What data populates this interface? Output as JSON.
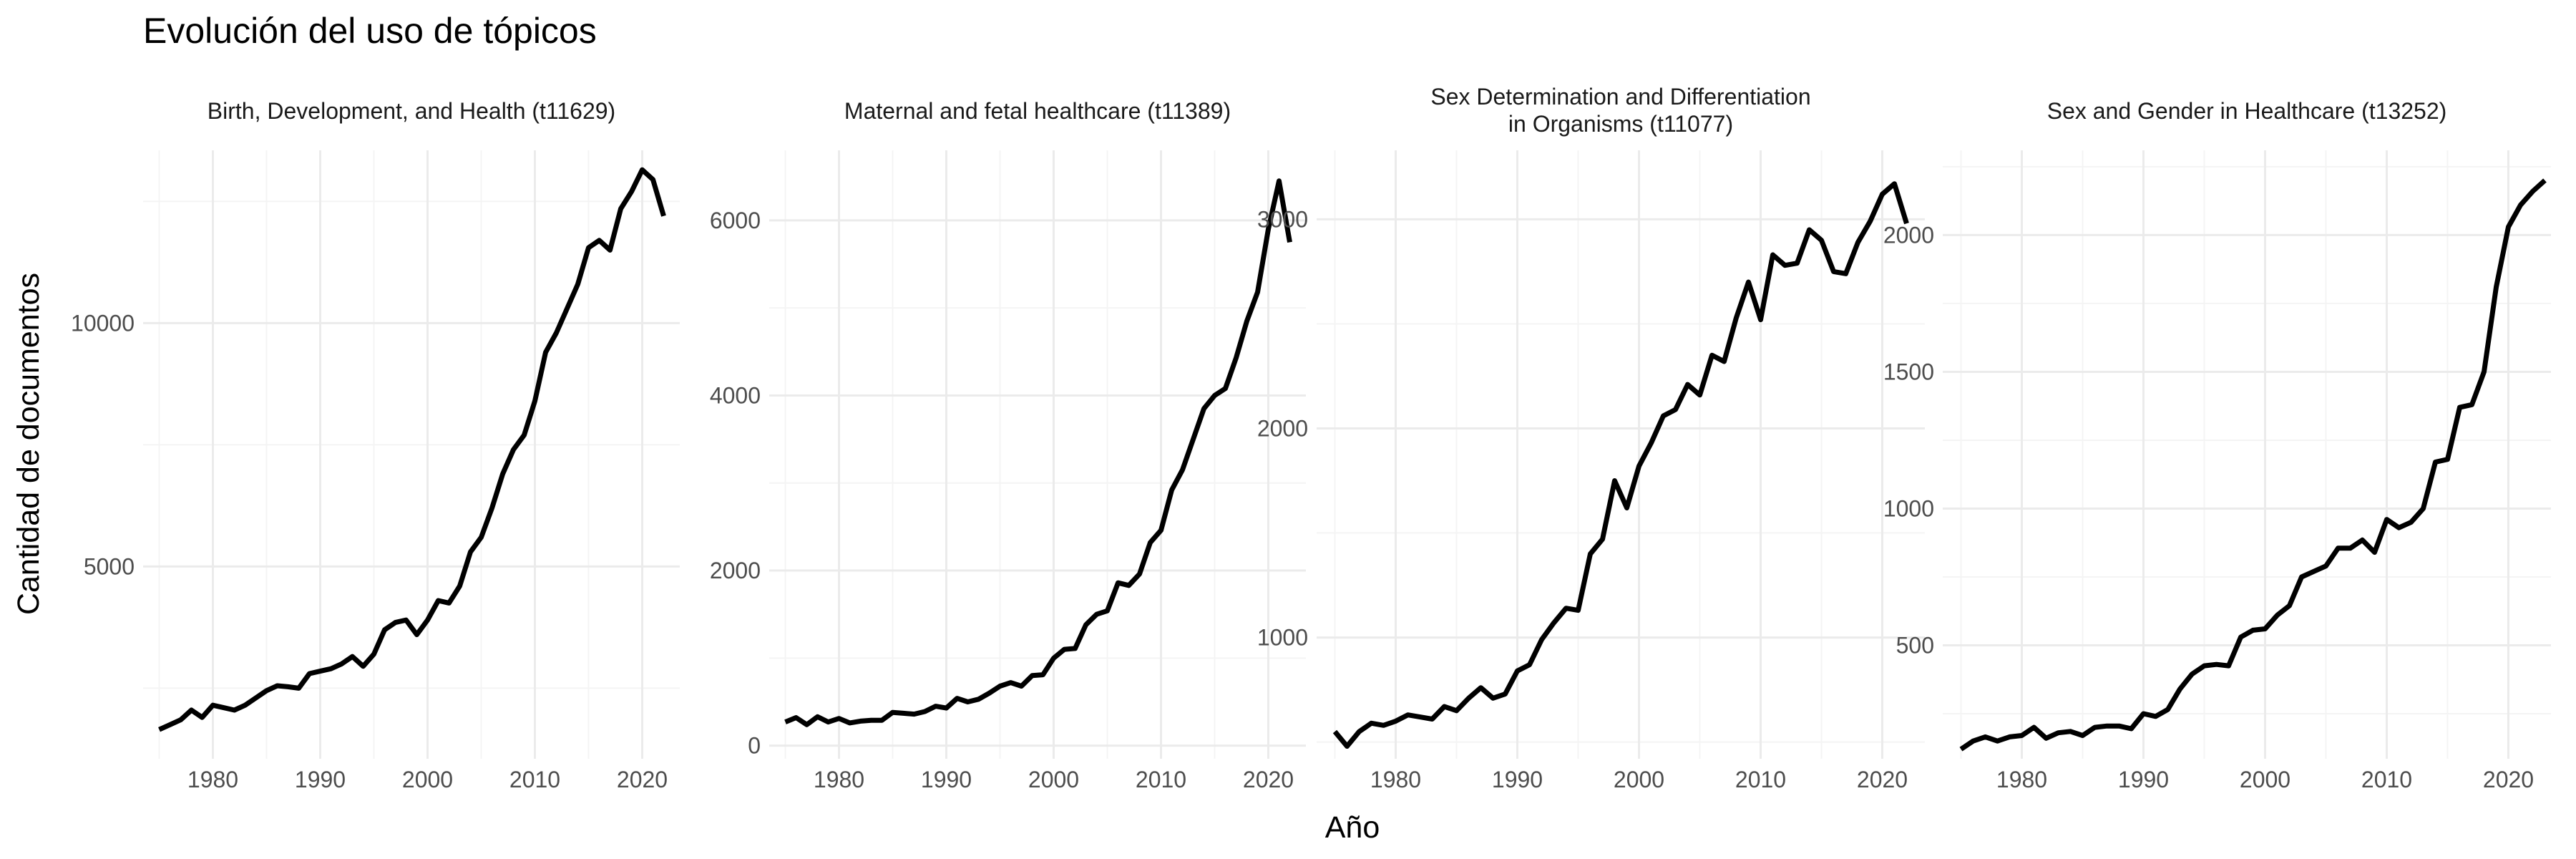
{
  "figure": {
    "title": "Evolución del uso de tópicos",
    "xlabel": "Año",
    "ylabel": "Cantidad de documentos"
  },
  "style": {
    "line_color": "#000000",
    "grid_major": "#ebebeb",
    "grid_minor": "#f4f4f4",
    "text_color": "#1a1a1a",
    "tick_color": "#4d4d4d"
  },
  "chart_data": [
    {
      "type": "line",
      "title": "Birth, Development, and Health (t11629)",
      "xlim": [
        1973.5,
        2023.5
      ],
      "ylim": [
        1050,
        13550
      ],
      "xticks": [
        1980,
        1990,
        2000,
        2010,
        2020
      ],
      "yticks": [
        5000,
        10000
      ],
      "x": [
        1975,
        1976,
        1977,
        1978,
        1979,
        1980,
        1981,
        1982,
        1983,
        1984,
        1985,
        1986,
        1987,
        1988,
        1989,
        1990,
        1991,
        1992,
        1993,
        1994,
        1995,
        1996,
        1997,
        1998,
        1999,
        2000,
        2001,
        2002,
        2003,
        2004,
        2005,
        2006,
        2007,
        2008,
        2009,
        2010,
        2011,
        2012,
        2013,
        2014,
        2015,
        2016,
        2017,
        2018,
        2019,
        2020,
        2021,
        2022
      ],
      "y": [
        1650,
        1750,
        1850,
        2050,
        1900,
        2150,
        2100,
        2050,
        2150,
        2300,
        2450,
        2550,
        2530,
        2500,
        2800,
        2850,
        2900,
        3000,
        3150,
        2950,
        3200,
        3700,
        3850,
        3900,
        3600,
        3900,
        4300,
        4250,
        4600,
        5300,
        5600,
        6200,
        6900,
        7400,
        7700,
        8400,
        9400,
        9800,
        10300,
        10800,
        11550,
        11700,
        11500,
        12350,
        12700,
        13150,
        12950,
        12200
      ]
    },
    {
      "type": "line",
      "title": "Maternal and fetal healthcare (t11389)",
      "xlim": [
        1973.5,
        2023.5
      ],
      "ylim": [
        -150,
        6800
      ],
      "xticks": [
        1980,
        1990,
        2000,
        2010,
        2020
      ],
      "yticks": [
        0,
        2000,
        4000,
        6000
      ],
      "x": [
        1975,
        1976,
        1977,
        1978,
        1979,
        1980,
        1981,
        1982,
        1983,
        1984,
        1985,
        1986,
        1987,
        1988,
        1989,
        1990,
        1991,
        1992,
        1993,
        1994,
        1995,
        1996,
        1997,
        1998,
        1999,
        2000,
        2001,
        2002,
        2003,
        2004,
        2005,
        2006,
        2007,
        2008,
        2009,
        2010,
        2011,
        2012,
        2013,
        2014,
        2015,
        2016,
        2017,
        2018,
        2019,
        2020,
        2021,
        2022
      ],
      "y": [
        270,
        320,
        240,
        330,
        270,
        310,
        260,
        280,
        290,
        290,
        380,
        370,
        360,
        390,
        450,
        430,
        540,
        500,
        530,
        600,
        680,
        720,
        680,
        800,
        810,
        1000,
        1100,
        1110,
        1380,
        1500,
        1540,
        1860,
        1830,
        1960,
        2320,
        2460,
        2920,
        3150,
        3500,
        3850,
        4000,
        4080,
        4430,
        4850,
        5180,
        5900,
        6450,
        5750
      ]
    },
    {
      "type": "line",
      "title": "Sex Determination and Differentiation\nin Organisms (t11077)",
      "xlim": [
        1973.5,
        2023.5
      ],
      "ylim": [
        420,
        3330
      ],
      "xticks": [
        1980,
        1990,
        2000,
        2010,
        2020
      ],
      "yticks": [
        1000,
        2000,
        3000
      ],
      "x": [
        1975,
        1976,
        1977,
        1978,
        1979,
        1980,
        1981,
        1982,
        1983,
        1984,
        1985,
        1986,
        1987,
        1988,
        1989,
        1990,
        1991,
        1992,
        1993,
        1994,
        1995,
        1996,
        1997,
        1998,
        1999,
        2000,
        2001,
        2002,
        2003,
        2004,
        2005,
        2006,
        2007,
        2008,
        2009,
        2010,
        2011,
        2012,
        2013,
        2014,
        2015,
        2016,
        2017,
        2018,
        2019,
        2020,
        2021,
        2022
      ],
      "y": [
        550,
        480,
        550,
        590,
        580,
        600,
        630,
        620,
        610,
        670,
        650,
        710,
        760,
        710,
        730,
        840,
        870,
        990,
        1070,
        1140,
        1130,
        1400,
        1470,
        1750,
        1620,
        1820,
        1930,
        2060,
        2090,
        2210,
        2160,
        2350,
        2320,
        2530,
        2700,
        2520,
        2830,
        2780,
        2790,
        2950,
        2900,
        2750,
        2740,
        2890,
        2990,
        3120,
        3170,
        2980
      ]
    },
    {
      "type": "line",
      "title": "Sex and Gender in Healthcare (t13252)",
      "xlim": [
        1973.5,
        2023.5
      ],
      "ylim": [
        85,
        2310
      ],
      "xticks": [
        1980,
        1990,
        2000,
        2010,
        2020
      ],
      "yticks": [
        500,
        1000,
        1500,
        2000
      ],
      "x": [
        1975,
        1976,
        1977,
        1978,
        1979,
        1980,
        1981,
        1982,
        1983,
        1984,
        1985,
        1986,
        1987,
        1988,
        1989,
        1990,
        1991,
        1992,
        1993,
        1994,
        1995,
        1996,
        1997,
        1998,
        1999,
        2000,
        2001,
        2002,
        2003,
        2004,
        2005,
        2006,
        2007,
        2008,
        2009,
        2010,
        2011,
        2012,
        2013,
        2014,
        2015,
        2016,
        2017,
        2018,
        2019,
        2020,
        2021,
        2022,
        2023
      ],
      "y": [
        120,
        150,
        165,
        150,
        165,
        170,
        200,
        160,
        180,
        185,
        170,
        200,
        205,
        205,
        195,
        250,
        240,
        265,
        340,
        395,
        425,
        430,
        425,
        530,
        555,
        560,
        610,
        645,
        750,
        770,
        790,
        855,
        855,
        885,
        840,
        960,
        930,
        950,
        1000,
        1170,
        1180,
        1370,
        1380,
        1500,
        1810,
        2030,
        2110,
        2160,
        2200
      ]
    }
  ]
}
